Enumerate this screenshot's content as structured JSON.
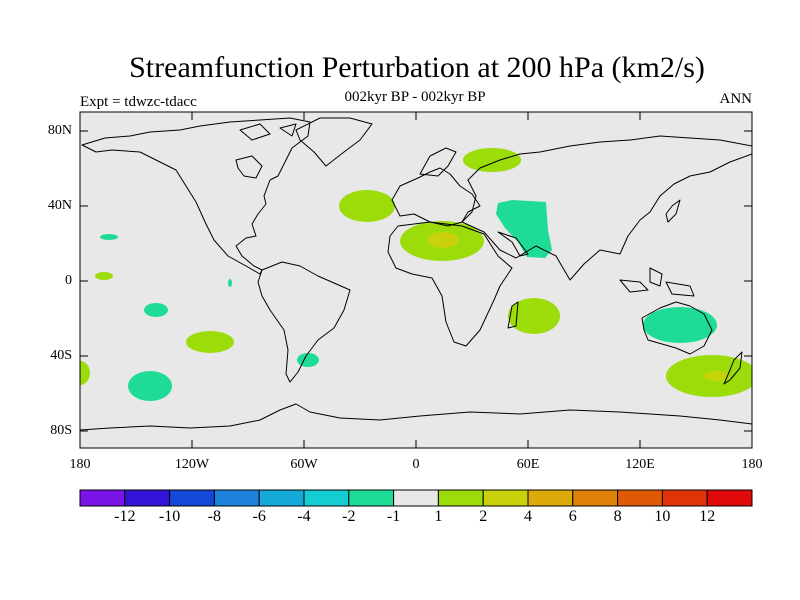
{
  "header": {
    "title": "Streamfunction Perturbation at 200 hPa (km2/s)",
    "subtitle": "002kyr BP - 002kyr BP",
    "expt": "Expt = tdwzc-tdacc",
    "season": "ANN"
  },
  "map": {
    "projection": "equirectangular",
    "background_color": "#e8e8e8",
    "coastline_color": "#000000",
    "lat_ticks": [
      "80N",
      "40N",
      "0",
      "40S",
      "80S"
    ],
    "lon_ticks": [
      "180",
      "120W",
      "60W",
      "0",
      "60E",
      "120E",
      "180"
    ]
  },
  "colorbar": {
    "colors": [
      "#7b14e6",
      "#3214d8",
      "#1448d8",
      "#1e82dc",
      "#14aad8",
      "#14ccd2",
      "#1edc96",
      "#e8e8e8",
      "#9bdc0a",
      "#c8d20a",
      "#dcaa0a",
      "#e08208",
      "#e05a06",
      "#e03406",
      "#e00a0a"
    ],
    "labels": [
      "-12",
      "-10",
      "-8",
      "-6",
      "-4",
      "-2",
      "-1",
      "1",
      "2",
      "4",
      "6",
      "8",
      "10",
      "12"
    ]
  },
  "chart_data": {
    "type": "contour-map",
    "variable": "Streamfunction perturbation",
    "level": "200 hPa",
    "units": "km2/s",
    "features": [
      {
        "level": "2",
        "lon": 31,
        "lat": 41,
        "color": "#9bdc0a"
      },
      {
        "level": "2",
        "lon": 17,
        "lat": 20,
        "color": "#9bdc0a"
      },
      {
        "level": "4",
        "lon": 15,
        "lat": 21,
        "color": "#c8d20a"
      },
      {
        "level": "2",
        "lon": 41,
        "lat": 65,
        "color": "#9bdc0a"
      },
      {
        "level": "-2",
        "lon": 57,
        "lat": 28,
        "color": "#1edc96"
      },
      {
        "level": "2",
        "lon": 61,
        "lat": -18,
        "color": "#9bdc0a"
      },
      {
        "level": "-2",
        "lon": 135,
        "lat": -23,
        "color": "#1edc96"
      },
      {
        "level": "2",
        "lon": 163,
        "lat": -50,
        "color": "#9bdc0a"
      },
      {
        "level": "4",
        "lon": 162,
        "lat": -50,
        "color": "#c8d20a"
      },
      {
        "level": "-2",
        "lon": -140,
        "lat": -56,
        "color": "#1edc96"
      },
      {
        "level": "2",
        "lon": -115,
        "lat": -33,
        "color": "#9bdc0a"
      },
      {
        "level": "-2",
        "lon": -62,
        "lat": -41,
        "color": "#1edc96"
      },
      {
        "level": "-2",
        "lon": -136,
        "lat": -15,
        "color": "#1edc96"
      },
      {
        "level": "-2",
        "lon": -162,
        "lat": 24,
        "color": "#1edc96"
      },
      {
        "level": "2",
        "lon": -165,
        "lat": 3,
        "color": "#9bdc0a"
      },
      {
        "level": "2",
        "lon": 180,
        "lat": -48,
        "color": "#9bdc0a"
      }
    ]
  }
}
